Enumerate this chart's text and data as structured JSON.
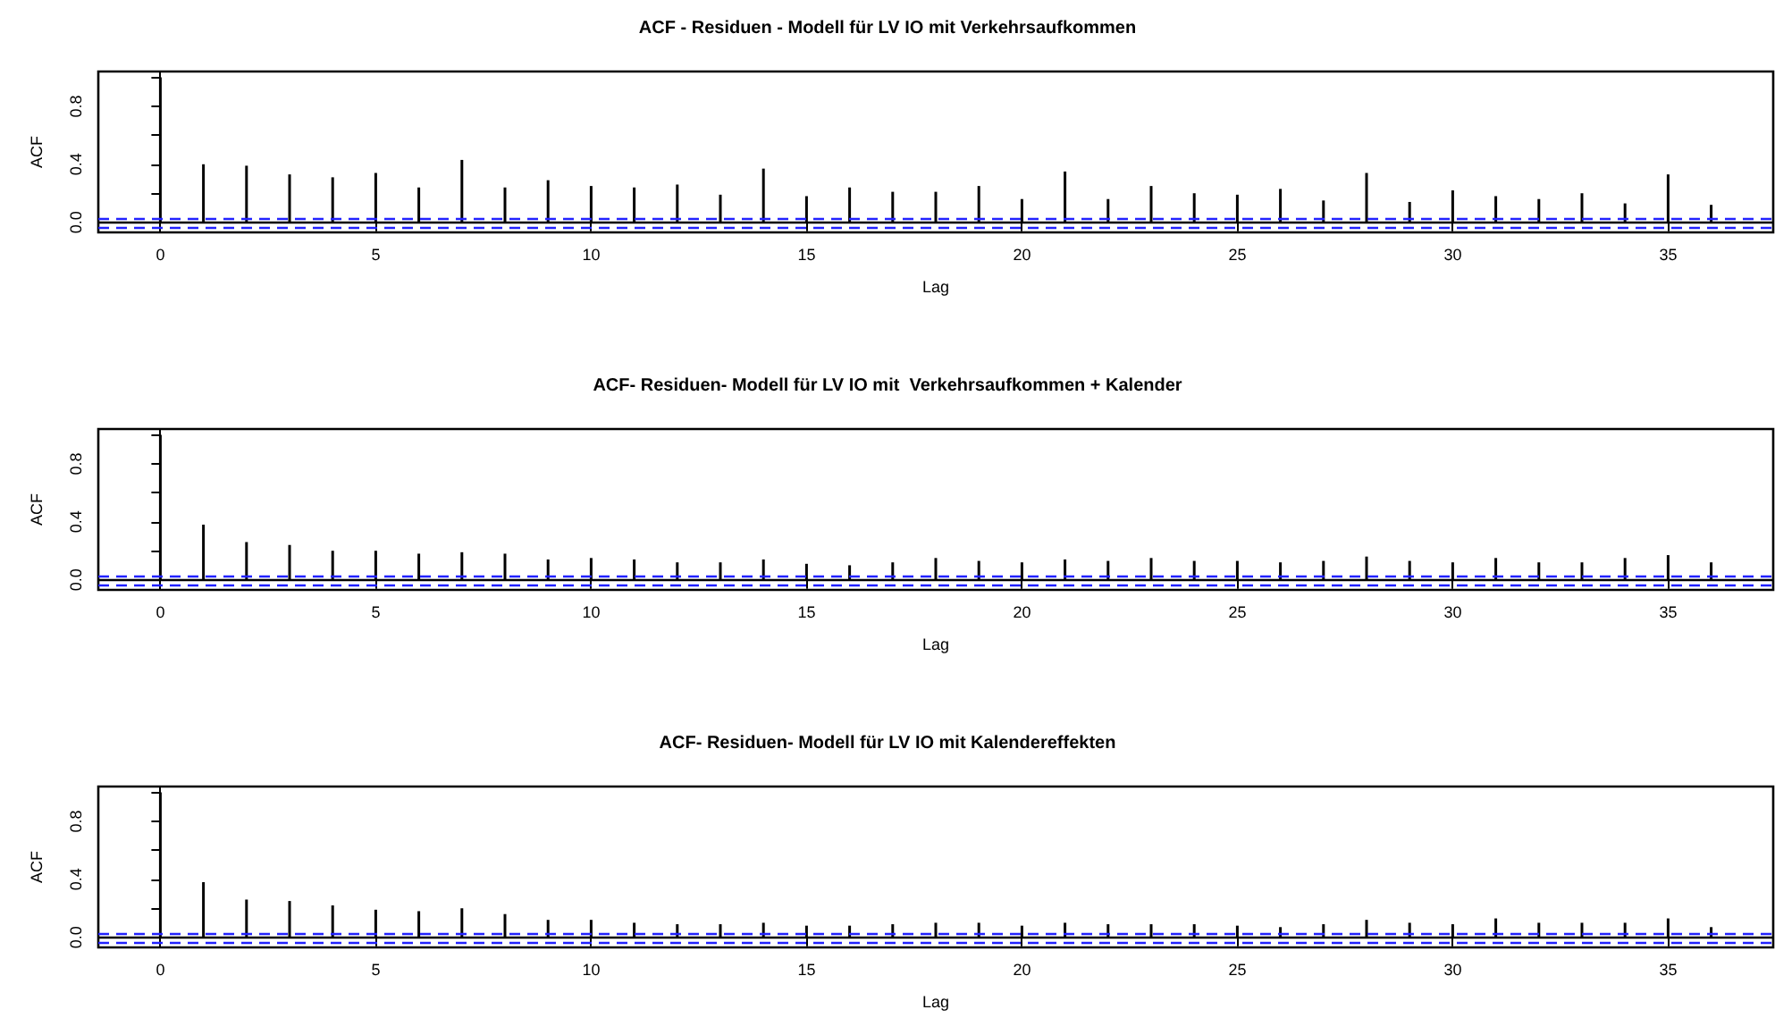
{
  "chart_data": [
    {
      "type": "bar",
      "title": "ACF - Residuen - Modell für LV IO mit Verkehrsaufkommen",
      "xlabel": "Lag",
      "ylabel": "ACF",
      "x": [
        0,
        1,
        2,
        3,
        4,
        5,
        6,
        7,
        8,
        9,
        10,
        11,
        12,
        13,
        14,
        15,
        16,
        17,
        18,
        19,
        20,
        21,
        22,
        23,
        24,
        25,
        26,
        27,
        28,
        29,
        30,
        31,
        32,
        33,
        34,
        35,
        36
      ],
      "values": [
        1.0,
        0.4,
        0.39,
        0.33,
        0.31,
        0.34,
        0.24,
        0.43,
        0.24,
        0.29,
        0.25,
        0.24,
        0.26,
        0.19,
        0.37,
        0.18,
        0.24,
        0.21,
        0.21,
        0.25,
        0.16,
        0.35,
        0.16,
        0.25,
        0.2,
        0.19,
        0.23,
        0.15,
        0.34,
        0.14,
        0.22,
        0.18,
        0.16,
        0.2,
        0.13,
        0.33,
        0.12
      ],
      "color": "#000000",
      "xlim": [
        -1.44,
        37.44
      ],
      "xticks": [
        0,
        5,
        10,
        15,
        20,
        25,
        30,
        35
      ],
      "ylim": [
        -0.07,
        1.04
      ],
      "yticks": [
        {
          "value": 0,
          "label": "0.0"
        },
        {
          "value": 0.2,
          "label": null
        },
        {
          "value": 0.4,
          "label": "0.4"
        },
        {
          "value": 0.6,
          "label": null
        },
        {
          "value": 0.8,
          "label": "0.8"
        },
        {
          "value": 1.0,
          "label": null
        }
      ],
      "grid": false,
      "ref_lines": [
        {
          "axis": "y",
          "value": 0,
          "color": "#000000",
          "line_style": "solid"
        },
        {
          "axis": "y",
          "value": 0.03,
          "color": "#2222ff",
          "line_style": "dashed"
        },
        {
          "axis": "y",
          "value": -0.03,
          "color": "#2222ff",
          "line_style": "dashed"
        }
      ]
    },
    {
      "type": "bar",
      "title": "ACF- Residuen- Modell für LV IO mit  Verkehrsaufkommen + Kalender",
      "xlabel": "Lag",
      "ylabel": "ACF",
      "x": [
        0,
        1,
        2,
        3,
        4,
        5,
        6,
        7,
        8,
        9,
        10,
        11,
        12,
        13,
        14,
        15,
        16,
        17,
        18,
        19,
        20,
        21,
        22,
        23,
        24,
        25,
        26,
        27,
        28,
        29,
        30,
        31,
        32,
        33,
        34,
        35,
        36
      ],
      "values": [
        1.0,
        0.38,
        0.26,
        0.24,
        0.2,
        0.2,
        0.18,
        0.19,
        0.18,
        0.14,
        0.15,
        0.14,
        0.12,
        0.12,
        0.14,
        0.11,
        0.1,
        0.12,
        0.15,
        0.13,
        0.12,
        0.14,
        0.13,
        0.15,
        0.13,
        0.13,
        0.12,
        0.13,
        0.16,
        0.13,
        0.12,
        0.15,
        0.12,
        0.12,
        0.15,
        0.17,
        0.12
      ],
      "color": "#000000",
      "xlim": [
        -1.44,
        37.44
      ],
      "xticks": [
        0,
        5,
        10,
        15,
        20,
        25,
        30,
        35
      ],
      "ylim": [
        -0.07,
        1.04
      ],
      "yticks": [
        {
          "value": 0,
          "label": "0.0"
        },
        {
          "value": 0.2,
          "label": null
        },
        {
          "value": 0.4,
          "label": "0.4"
        },
        {
          "value": 0.6,
          "label": null
        },
        {
          "value": 0.8,
          "label": "0.8"
        },
        {
          "value": 1.0,
          "label": null
        }
      ],
      "grid": false,
      "ref_lines": [
        {
          "axis": "y",
          "value": 0,
          "color": "#000000",
          "line_style": "solid"
        },
        {
          "axis": "y",
          "value": 0.03,
          "color": "#2222ff",
          "line_style": "dashed"
        },
        {
          "axis": "y",
          "value": -0.03,
          "color": "#2222ff",
          "line_style": "dashed"
        }
      ]
    },
    {
      "type": "bar",
      "title": "ACF- Residuen- Modell für LV IO mit Kalendereffekten",
      "xlabel": "Lag",
      "ylabel": "ACF",
      "x": [
        0,
        1,
        2,
        3,
        4,
        5,
        6,
        7,
        8,
        9,
        10,
        11,
        12,
        13,
        14,
        15,
        16,
        17,
        18,
        19,
        20,
        21,
        22,
        23,
        24,
        25,
        26,
        27,
        28,
        29,
        30,
        31,
        32,
        33,
        34,
        35,
        36
      ],
      "values": [
        1.0,
        0.38,
        0.26,
        0.25,
        0.22,
        0.19,
        0.18,
        0.2,
        0.16,
        0.12,
        0.12,
        0.1,
        0.09,
        0.09,
        0.1,
        0.08,
        0.08,
        0.09,
        0.1,
        0.1,
        0.08,
        0.1,
        0.09,
        0.09,
        0.09,
        0.08,
        0.07,
        0.09,
        0.12,
        0.1,
        0.09,
        0.13,
        0.1,
        0.1,
        0.1,
        0.13,
        0.07
      ],
      "color": "#000000",
      "xlim": [
        -1.44,
        37.44
      ],
      "xticks": [
        0,
        5,
        10,
        15,
        20,
        25,
        30,
        35
      ],
      "ylim": [
        -0.07,
        1.04
      ],
      "yticks": [
        {
          "value": 0,
          "label": "0.0"
        },
        {
          "value": 0.2,
          "label": null
        },
        {
          "value": 0.4,
          "label": "0.4"
        },
        {
          "value": 0.6,
          "label": null
        },
        {
          "value": 0.8,
          "label": "0.8"
        },
        {
          "value": 1.0,
          "label": null
        }
      ],
      "grid": false,
      "ref_lines": [
        {
          "axis": "y",
          "value": 0,
          "color": "#000000",
          "line_style": "solid"
        },
        {
          "axis": "y",
          "value": 0.03,
          "color": "#2222ff",
          "line_style": "dashed"
        },
        {
          "axis": "y",
          "value": -0.03,
          "color": "#2222ff",
          "line_style": "dashed"
        }
      ]
    }
  ]
}
